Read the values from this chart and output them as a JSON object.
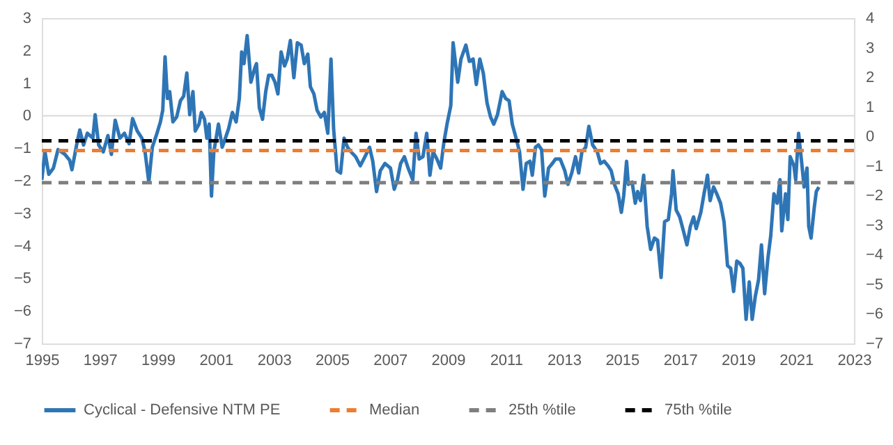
{
  "chart_data": {
    "type": "line",
    "xlim": [
      1995,
      2023
    ],
    "xticks": [
      1995,
      1997,
      1999,
      2001,
      2003,
      2005,
      2007,
      2009,
      2011,
      2013,
      2015,
      2017,
      2019,
      2021,
      2023
    ],
    "ylim": [
      -7,
      3
    ],
    "yticks": [
      -7,
      -6,
      -5,
      -4,
      -3,
      -2,
      -1,
      0,
      1,
      2,
      3
    ],
    "y2lim": [
      -7,
      4
    ],
    "y2ticks": [
      -7,
      -6,
      -5,
      -4,
      -3,
      -2,
      -1,
      0,
      1,
      2,
      3,
      4
    ],
    "legend": "bottom",
    "line_style": "solid",
    "series": [
      {
        "name": "Cyclical - Defensive NTM PE",
        "color": "#2e75b6",
        "x": [
          1995.0,
          1995.11,
          1995.24,
          1995.4,
          1995.56,
          1995.8,
          1995.96,
          1996.04,
          1996.2,
          1996.31,
          1996.44,
          1996.57,
          1996.76,
          1996.84,
          1996.96,
          1997.12,
          1997.28,
          1997.4,
          1997.53,
          1997.69,
          1997.85,
          1998.01,
          1998.13,
          1998.29,
          1998.45,
          1998.56,
          1998.69,
          1998.81,
          1998.97,
          1999.09,
          1999.17,
          1999.25,
          1999.33,
          1999.41,
          1999.52,
          1999.65,
          1999.78,
          1999.89,
          2000.0,
          2000.1,
          2000.21,
          2000.29,
          2000.42,
          2000.5,
          2000.61,
          2000.69,
          2000.77,
          2000.85,
          2000.93,
          2001.01,
          2001.09,
          2001.22,
          2001.33,
          2001.44,
          2001.57,
          2001.7,
          2001.81,
          2001.89,
          2001.97,
          2002.08,
          2002.21,
          2002.34,
          2002.4,
          2002.5,
          2002.61,
          2002.72,
          2002.82,
          2002.93,
          2003.04,
          2003.14,
          2003.25,
          2003.37,
          2003.46,
          2003.57,
          2003.69,
          2003.81,
          2003.94,
          2004.05,
          2004.17,
          2004.26,
          2004.38,
          2004.49,
          2004.62,
          2004.74,
          2004.86,
          2004.97,
          2005.06,
          2005.18,
          2005.3,
          2005.42,
          2005.54,
          2005.66,
          2005.82,
          2005.98,
          2006.14,
          2006.3,
          2006.41,
          2006.54,
          2006.67,
          2006.83,
          2007.02,
          2007.15,
          2007.26,
          2007.37,
          2007.5,
          2007.63,
          2007.79,
          2007.9,
          2008.01,
          2008.14,
          2008.27,
          2008.38,
          2008.49,
          2008.62,
          2008.75,
          2008.86,
          2008.97,
          2009.1,
          2009.18,
          2009.34,
          2009.45,
          2009.62,
          2009.74,
          2009.87,
          2009.98,
          2010.1,
          2010.22,
          2010.35,
          2010.47,
          2010.58,
          2010.71,
          2010.87,
          2010.99,
          2011.11,
          2011.22,
          2011.35,
          2011.47,
          2011.59,
          2011.7,
          2011.83,
          2011.91,
          2012.02,
          2012.12,
          2012.23,
          2012.34,
          2012.47,
          2012.6,
          2012.71,
          2012.87,
          2013.03,
          2013.14,
          2013.27,
          2013.4,
          2013.51,
          2013.62,
          2013.75,
          2013.86,
          2013.99,
          2014.15,
          2014.26,
          2014.39,
          2014.52,
          2014.63,
          2014.74,
          2014.87,
          2014.98,
          2015.06,
          2015.16,
          2015.22,
          2015.35,
          2015.46,
          2015.54,
          2015.64,
          2015.75,
          2015.87,
          2015.99,
          2016.12,
          2016.23,
          2016.35,
          2016.47,
          2016.6,
          2016.71,
          2016.76,
          2016.87,
          2016.99,
          2017.12,
          2017.24,
          2017.36,
          2017.47,
          2017.56,
          2017.72,
          2017.83,
          2017.95,
          2018.04,
          2018.16,
          2018.27,
          2018.4,
          2018.52,
          2018.64,
          2018.75,
          2018.85,
          2018.96,
          2019.07,
          2019.17,
          2019.28,
          2019.39,
          2019.49,
          2019.6,
          2019.71,
          2019.81,
          2019.92,
          2020.03,
          2020.13,
          2020.24,
          2020.35,
          2020.45,
          2020.51,
          2020.64,
          2020.72,
          2020.8,
          2020.93,
          2020.99,
          2021.09,
          2021.2,
          2021.28,
          2021.38,
          2021.44,
          2021.52,
          2021.63,
          2021.7,
          2021.79
        ],
        "values": [
          -1.97,
          -1.11,
          -1.8,
          -1.61,
          -1.04,
          -1.19,
          -1.37,
          -1.66,
          -0.9,
          -0.44,
          -0.9,
          -0.54,
          -0.69,
          0.03,
          -0.9,
          -1.11,
          -0.61,
          -1.19,
          -0.14,
          -0.69,
          -0.54,
          -0.86,
          -0.09,
          -0.47,
          -0.69,
          -1.11,
          -2.04,
          -0.97,
          -0.54,
          -0.19,
          0.17,
          1.81,
          0.53,
          0.74,
          -0.19,
          -0.04,
          0.46,
          0.6,
          1.31,
          0.03,
          0.74,
          -0.47,
          -0.26,
          0.1,
          -0.11,
          -0.69,
          -0.26,
          -2.47,
          -1.11,
          -0.69,
          -0.26,
          -0.97,
          -0.69,
          -0.4,
          0.1,
          -0.19,
          0.53,
          1.96,
          1.6,
          2.46,
          1.03,
          1.46,
          1.6,
          0.24,
          -0.11,
          0.74,
          1.24,
          1.24,
          1.03,
          0.67,
          1.96,
          1.53,
          1.74,
          2.31,
          1.17,
          2.24,
          2.17,
          1.6,
          1.89,
          0.89,
          0.67,
          0.17,
          -0.04,
          0.1,
          -0.54,
          1.74,
          -0.4,
          -1.69,
          -1.76,
          -0.69,
          -0.97,
          -1.11,
          -1.26,
          -1.54,
          -1.26,
          -0.97,
          -1.4,
          -2.33,
          -1.69,
          -1.47,
          -1.61,
          -2.26,
          -1.97,
          -1.47,
          -1.26,
          -1.61,
          -1.97,
          -0.54,
          -1.33,
          -1.26,
          -0.54,
          -1.83,
          -1.11,
          -1.33,
          -1.61,
          -0.83,
          -0.26,
          0.31,
          2.24,
          1.03,
          1.74,
          2.17,
          1.67,
          1.74,
          0.96,
          1.74,
          1.31,
          0.39,
          -0.04,
          -0.26,
          0.03,
          0.74,
          0.53,
          0.46,
          -0.26,
          -0.69,
          -1.11,
          -2.26,
          -1.47,
          -1.4,
          -1.83,
          -0.97,
          -0.9,
          -1.04,
          -2.47,
          -1.61,
          -1.47,
          -1.33,
          -1.33,
          -1.69,
          -2.11,
          -1.76,
          -1.26,
          -1.76,
          -1.11,
          -0.97,
          -0.33,
          -0.9,
          -1.11,
          -1.47,
          -1.4,
          -1.54,
          -1.69,
          -2.11,
          -2.4,
          -2.97,
          -2.47,
          -1.4,
          -2.11,
          -2.04,
          -2.69,
          -2.33,
          -2.61,
          -1.83,
          -3.4,
          -4.11,
          -3.76,
          -3.83,
          -4.97,
          -3.26,
          -3.19,
          -2.4,
          -1.69,
          -2.9,
          -3.11,
          -3.54,
          -3.97,
          -3.4,
          -3.11,
          -3.47,
          -2.97,
          -2.4,
          -1.83,
          -2.61,
          -2.19,
          -2.4,
          -2.69,
          -3.26,
          -4.61,
          -4.69,
          -5.4,
          -4.47,
          -4.54,
          -4.69,
          -6.26,
          -5.11,
          -6.26,
          -5.54,
          -5.04,
          -3.97,
          -5.47,
          -4.4,
          -3.69,
          -2.4,
          -2.69,
          -1.97,
          -3.54,
          -2.4,
          -3.19,
          -1.26,
          -1.54,
          -1.97,
          -0.54,
          -1.47,
          -2.19,
          -1.61,
          -3.4,
          -3.76,
          -2.83,
          -2.33,
          -2.19
        ]
      }
    ],
    "ref_lines": [
      {
        "axis": "y",
        "value": 0,
        "color": "#d9d9d9",
        "line_style": "solid"
      },
      {
        "axis": "y",
        "value": -1.07,
        "label": "Median",
        "color": "#ed7d31",
        "line_style": "dashed"
      },
      {
        "axis": "y",
        "value": -2.06,
        "label": "25th %tile",
        "color": "#7f7f7f",
        "line_style": "dashed"
      },
      {
        "axis": "y",
        "value": -0.77,
        "label": "75th %tile",
        "color": "#000000",
        "line_style": "dashed"
      }
    ]
  }
}
